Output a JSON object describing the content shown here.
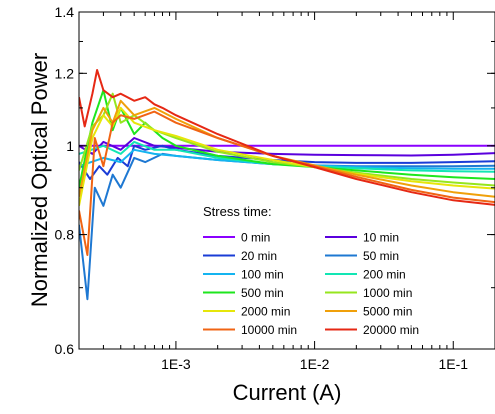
{
  "chart_data": {
    "type": "line",
    "xlabel": "Current (A)",
    "ylabel": "Normalized Optical Power",
    "x_scale": "log",
    "y_scale": "log",
    "xlim": [
      0.0002,
      0.2
    ],
    "ylim": [
      0.6,
      1.4
    ],
    "x_ticks": [
      {
        "value": 0.001,
        "label": "1E-3"
      },
      {
        "value": 0.01,
        "label": "1E-2"
      },
      {
        "value": 0.1,
        "label": "1E-1"
      }
    ],
    "y_ticks": [
      {
        "value": 0.6,
        "label": "0.6"
      },
      {
        "value": 0.8,
        "label": "0.8"
      },
      {
        "value": 1.0,
        "label": "1"
      },
      {
        "value": 1.2,
        "label": "1.2"
      },
      {
        "value": 1.4,
        "label": "1.4"
      }
    ],
    "legend_title": "Stress time:",
    "legend_placement": "bottom-right",
    "series": [
      {
        "name": "0 min",
        "color": "#8a00ff",
        "x": [
          0.0002,
          0.0003,
          0.0005,
          0.001,
          0.002,
          0.005,
          0.01,
          0.02,
          0.05,
          0.1,
          0.2
        ],
        "y": [
          1.0,
          1.0,
          1.0,
          1.0,
          1.0,
          1.0,
          1.0,
          1.0,
          1.0,
          1.0,
          1.0
        ]
      },
      {
        "name": "10 min",
        "color": "#5a00dd",
        "x": [
          0.0002,
          0.00025,
          0.0003,
          0.0004,
          0.0005,
          0.0007,
          0.001,
          0.002,
          0.005,
          0.01,
          0.02,
          0.05,
          0.1,
          0.2
        ],
        "y": [
          1.0,
          0.98,
          1.01,
          0.99,
          1.02,
          1.0,
          0.995,
          0.985,
          0.98,
          0.978,
          0.977,
          0.976,
          0.978,
          0.982
        ]
      },
      {
        "name": "20 min",
        "color": "#1a3cd6",
        "x": [
          0.0002,
          0.00024,
          0.00028,
          0.00032,
          0.00038,
          0.00045,
          0.0005,
          0.0006,
          0.0008,
          0.001,
          0.002,
          0.005,
          0.01,
          0.02,
          0.05,
          0.1,
          0.2
        ],
        "y": [
          0.96,
          0.92,
          0.95,
          0.93,
          0.97,
          0.95,
          1.0,
          0.99,
          1.0,
          0.99,
          0.975,
          0.965,
          0.96,
          0.958,
          0.958,
          0.96,
          0.962
        ]
      },
      {
        "name": "50 min",
        "color": "#1e78d2",
        "x": [
          0.0002,
          0.00023,
          0.00026,
          0.0003,
          0.00035,
          0.0004,
          0.0005,
          0.0006,
          0.0008,
          0.001,
          0.002,
          0.005,
          0.01,
          0.02,
          0.05,
          0.1,
          0.2
        ],
        "y": [
          0.82,
          0.68,
          0.9,
          0.86,
          0.93,
          0.9,
          0.97,
          0.96,
          0.98,
          0.975,
          0.965,
          0.955,
          0.952,
          0.95,
          0.95,
          0.95,
          0.951
        ]
      },
      {
        "name": "100 min",
        "color": "#14b4f0",
        "x": [
          0.0002,
          0.0003,
          0.0004,
          0.0005,
          0.0007,
          0.001,
          0.002,
          0.005,
          0.01,
          0.02,
          0.05,
          0.1,
          0.2
        ],
        "y": [
          0.95,
          0.97,
          0.96,
          0.99,
          0.98,
          0.975,
          0.965,
          0.955,
          0.952,
          0.948,
          0.945,
          0.944,
          0.944
        ]
      },
      {
        "name": "200 min",
        "color": "#12e6b4",
        "x": [
          0.0002,
          0.0003,
          0.0004,
          0.0005,
          0.0007,
          0.001,
          0.002,
          0.005,
          0.01,
          0.02,
          0.05,
          0.1,
          0.2
        ],
        "y": [
          0.98,
          1.0,
          0.98,
          1.01,
          0.99,
          0.99,
          0.97,
          0.955,
          0.95,
          0.945,
          0.94,
          0.938,
          0.937
        ]
      },
      {
        "name": "500 min",
        "color": "#1ee61e",
        "x": [
          0.0002,
          0.00025,
          0.0003,
          0.00035,
          0.0004,
          0.0005,
          0.0006,
          0.0008,
          0.001,
          0.002,
          0.005,
          0.01,
          0.02,
          0.05,
          0.1,
          0.2
        ],
        "y": [
          0.9,
          1.06,
          1.15,
          1.04,
          1.1,
          1.03,
          1.06,
          1.02,
          1.0,
          0.975,
          0.955,
          0.948,
          0.94,
          0.93,
          0.924,
          0.92
        ]
      },
      {
        "name": "1000 min",
        "color": "#96e61e",
        "x": [
          0.0002,
          0.00025,
          0.0003,
          0.00035,
          0.0004,
          0.0005,
          0.0007,
          0.001,
          0.002,
          0.005,
          0.01,
          0.02,
          0.05,
          0.1,
          0.2
        ],
        "y": [
          0.94,
          1.05,
          1.08,
          1.14,
          1.06,
          1.08,
          1.04,
          1.02,
          0.985,
          0.96,
          0.948,
          0.935,
          0.92,
          0.912,
          0.905
        ]
      },
      {
        "name": "2000  min",
        "color": "#e6e60a",
        "x": [
          0.0002,
          0.00025,
          0.0003,
          0.00035,
          0.0004,
          0.0005,
          0.0007,
          0.001,
          0.002,
          0.005,
          0.01,
          0.02,
          0.05,
          0.1,
          0.2
        ],
        "y": [
          0.86,
          1.02,
          1.08,
          1.05,
          1.1,
          1.06,
          1.04,
          1.025,
          0.99,
          0.965,
          0.948,
          0.932,
          0.915,
          0.905,
          0.898
        ]
      },
      {
        "name": "5000 min",
        "color": "#f0a00a",
        "x": [
          0.0002,
          0.00025,
          0.0003,
          0.00035,
          0.0004,
          0.0005,
          0.0007,
          0.001,
          0.002,
          0.005,
          0.01,
          0.02,
          0.05,
          0.1,
          0.2
        ],
        "y": [
          0.88,
          1.04,
          1.1,
          1.06,
          1.12,
          1.08,
          1.1,
          1.07,
          1.02,
          0.975,
          0.952,
          0.93,
          0.905,
          0.89,
          0.88
        ]
      },
      {
        "name": "10000 min",
        "color": "#f06414",
        "x": [
          0.0002,
          0.00023,
          0.00026,
          0.0003,
          0.00035,
          0.0004,
          0.0005,
          0.0007,
          0.001,
          0.002,
          0.005,
          0.01,
          0.02,
          0.05,
          0.1,
          0.2
        ],
        "y": [
          0.85,
          0.76,
          1.02,
          0.95,
          1.06,
          1.08,
          1.07,
          1.09,
          1.06,
          1.02,
          0.975,
          0.95,
          0.925,
          0.895,
          0.878,
          0.868
        ]
      },
      {
        "name": "20000 min",
        "color": "#e62814",
        "x": [
          0.0002,
          0.00022,
          0.00025,
          0.00027,
          0.0003,
          0.00035,
          0.0004,
          0.0005,
          0.0006,
          0.0007,
          0.0008,
          0.001,
          0.002,
          0.005,
          0.01,
          0.02,
          0.05,
          0.1,
          0.2
        ],
        "y": [
          1.13,
          1.05,
          1.14,
          1.21,
          1.15,
          1.13,
          1.14,
          1.12,
          1.13,
          1.11,
          1.1,
          1.08,
          1.03,
          0.975,
          0.948,
          0.92,
          0.89,
          0.872,
          0.862
        ]
      }
    ]
  }
}
